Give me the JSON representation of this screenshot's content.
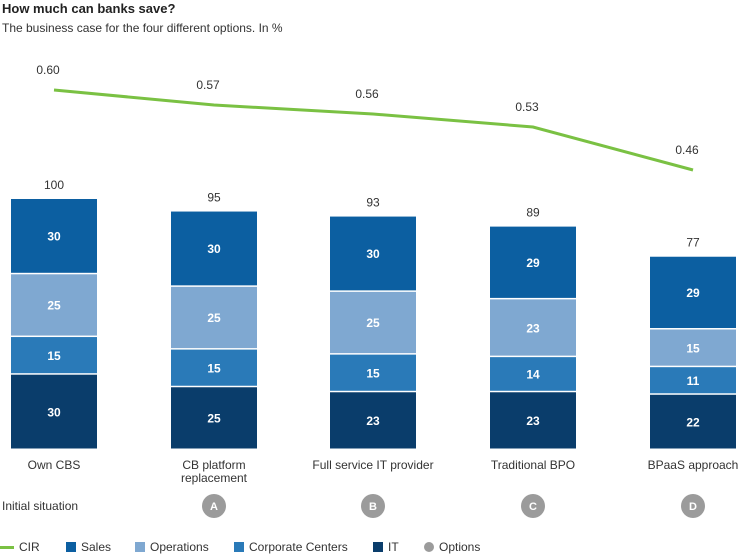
{
  "chart_data": {
    "type": "bar",
    "stacked": true,
    "title": "How much can banks save?",
    "subtitle": "The business case for the four different options. In %",
    "categories": [
      "Own CBS",
      "CB platform replacement",
      "Full service IT provider",
      "Traditional BPO",
      "BPaaS approach"
    ],
    "totals": [
      100,
      95,
      93,
      89,
      77
    ],
    "series": [
      {
        "name": "IT",
        "color": "#0a3d6b",
        "values": [
          30,
          25,
          23,
          23,
          22
        ]
      },
      {
        "name": "Corporate Centers",
        "color": "#2a7ab8",
        "values": [
          15,
          15,
          15,
          14,
          11
        ]
      },
      {
        "name": "Operations",
        "color": "#7fa8d1",
        "values": [
          25,
          25,
          25,
          23,
          15
        ]
      },
      {
        "name": "Sales",
        "color": "#0c5fa1",
        "values": [
          30,
          30,
          30,
          29,
          29
        ]
      }
    ],
    "line": {
      "name": "CIR",
      "color": "#7ac143",
      "values": [
        0.6,
        0.57,
        0.56,
        0.53,
        0.46
      ]
    },
    "baseline_label": "Initial situation",
    "option_badges": [
      "",
      "A",
      "B",
      "C",
      "D"
    ],
    "option_color": "#9b9b9b",
    "legend": [
      {
        "label": "CIR",
        "kind": "line",
        "color": "#7ac143"
      },
      {
        "label": "Sales",
        "kind": "box",
        "color": "#0c5fa1"
      },
      {
        "label": "Operations",
        "kind": "box",
        "color": "#7fa8d1"
      },
      {
        "label": "Corporate Centers",
        "kind": "box",
        "color": "#2a7ab8"
      },
      {
        "label": "IT",
        "kind": "box",
        "color": "#0a3d6b"
      },
      {
        "label": "Options",
        "kind": "circle",
        "color": "#9b9b9b"
      }
    ]
  }
}
